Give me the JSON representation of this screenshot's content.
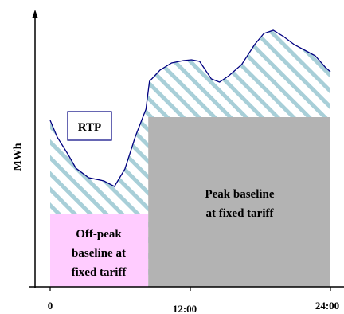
{
  "chart_data": {
    "type": "area",
    "title": "",
    "xlabel": "",
    "ylabel": "MWh",
    "x_ticks": [
      "0",
      "12:00",
      "24:00"
    ],
    "annotations": {
      "rtp": "RTP",
      "peak": [
        "Peak baseline",
        "at fixed tariff"
      ],
      "offpeak": [
        "Off-peak",
        "baseline at",
        "fixed tariff"
      ]
    },
    "xlim": [
      0,
      24
    ],
    "ylim": [
      0,
      340
    ],
    "baseline": {
      "offpeak_hours": [
        0,
        8.4
      ],
      "offpeak_value": 92,
      "peak_hours": [
        8.4,
        24
      ],
      "peak_value": 213
    },
    "series": [
      {
        "x": [
          0,
          0.6,
          1.5,
          2.2,
          3.3,
          4.6,
          5.5,
          6.4,
          7.3,
          8.2,
          8.5,
          9.4,
          10.4,
          11.4,
          12.1,
          12.8,
          13.8,
          14.5,
          15.3,
          16.4,
          17.5,
          18.3,
          19.1,
          20.0,
          20.9,
          21.8,
          22.7,
          23.6,
          24
        ],
        "values": [
          209,
          188,
          167,
          149,
          137,
          133,
          126,
          148,
          189,
          223,
          258,
          272,
          281,
          284,
          285,
          283,
          261,
          257,
          265,
          279,
          304,
          318,
          322,
          314,
          304,
          297,
          290,
          275,
          270
        ]
      }
    ],
    "colors": {
      "rtp_line": "#000080",
      "rtp_hatch": "#a8cfd8",
      "peak_fill": "#b3b3b3",
      "offpeak_fill": "#ffccff",
      "axis": "#000000"
    }
  }
}
